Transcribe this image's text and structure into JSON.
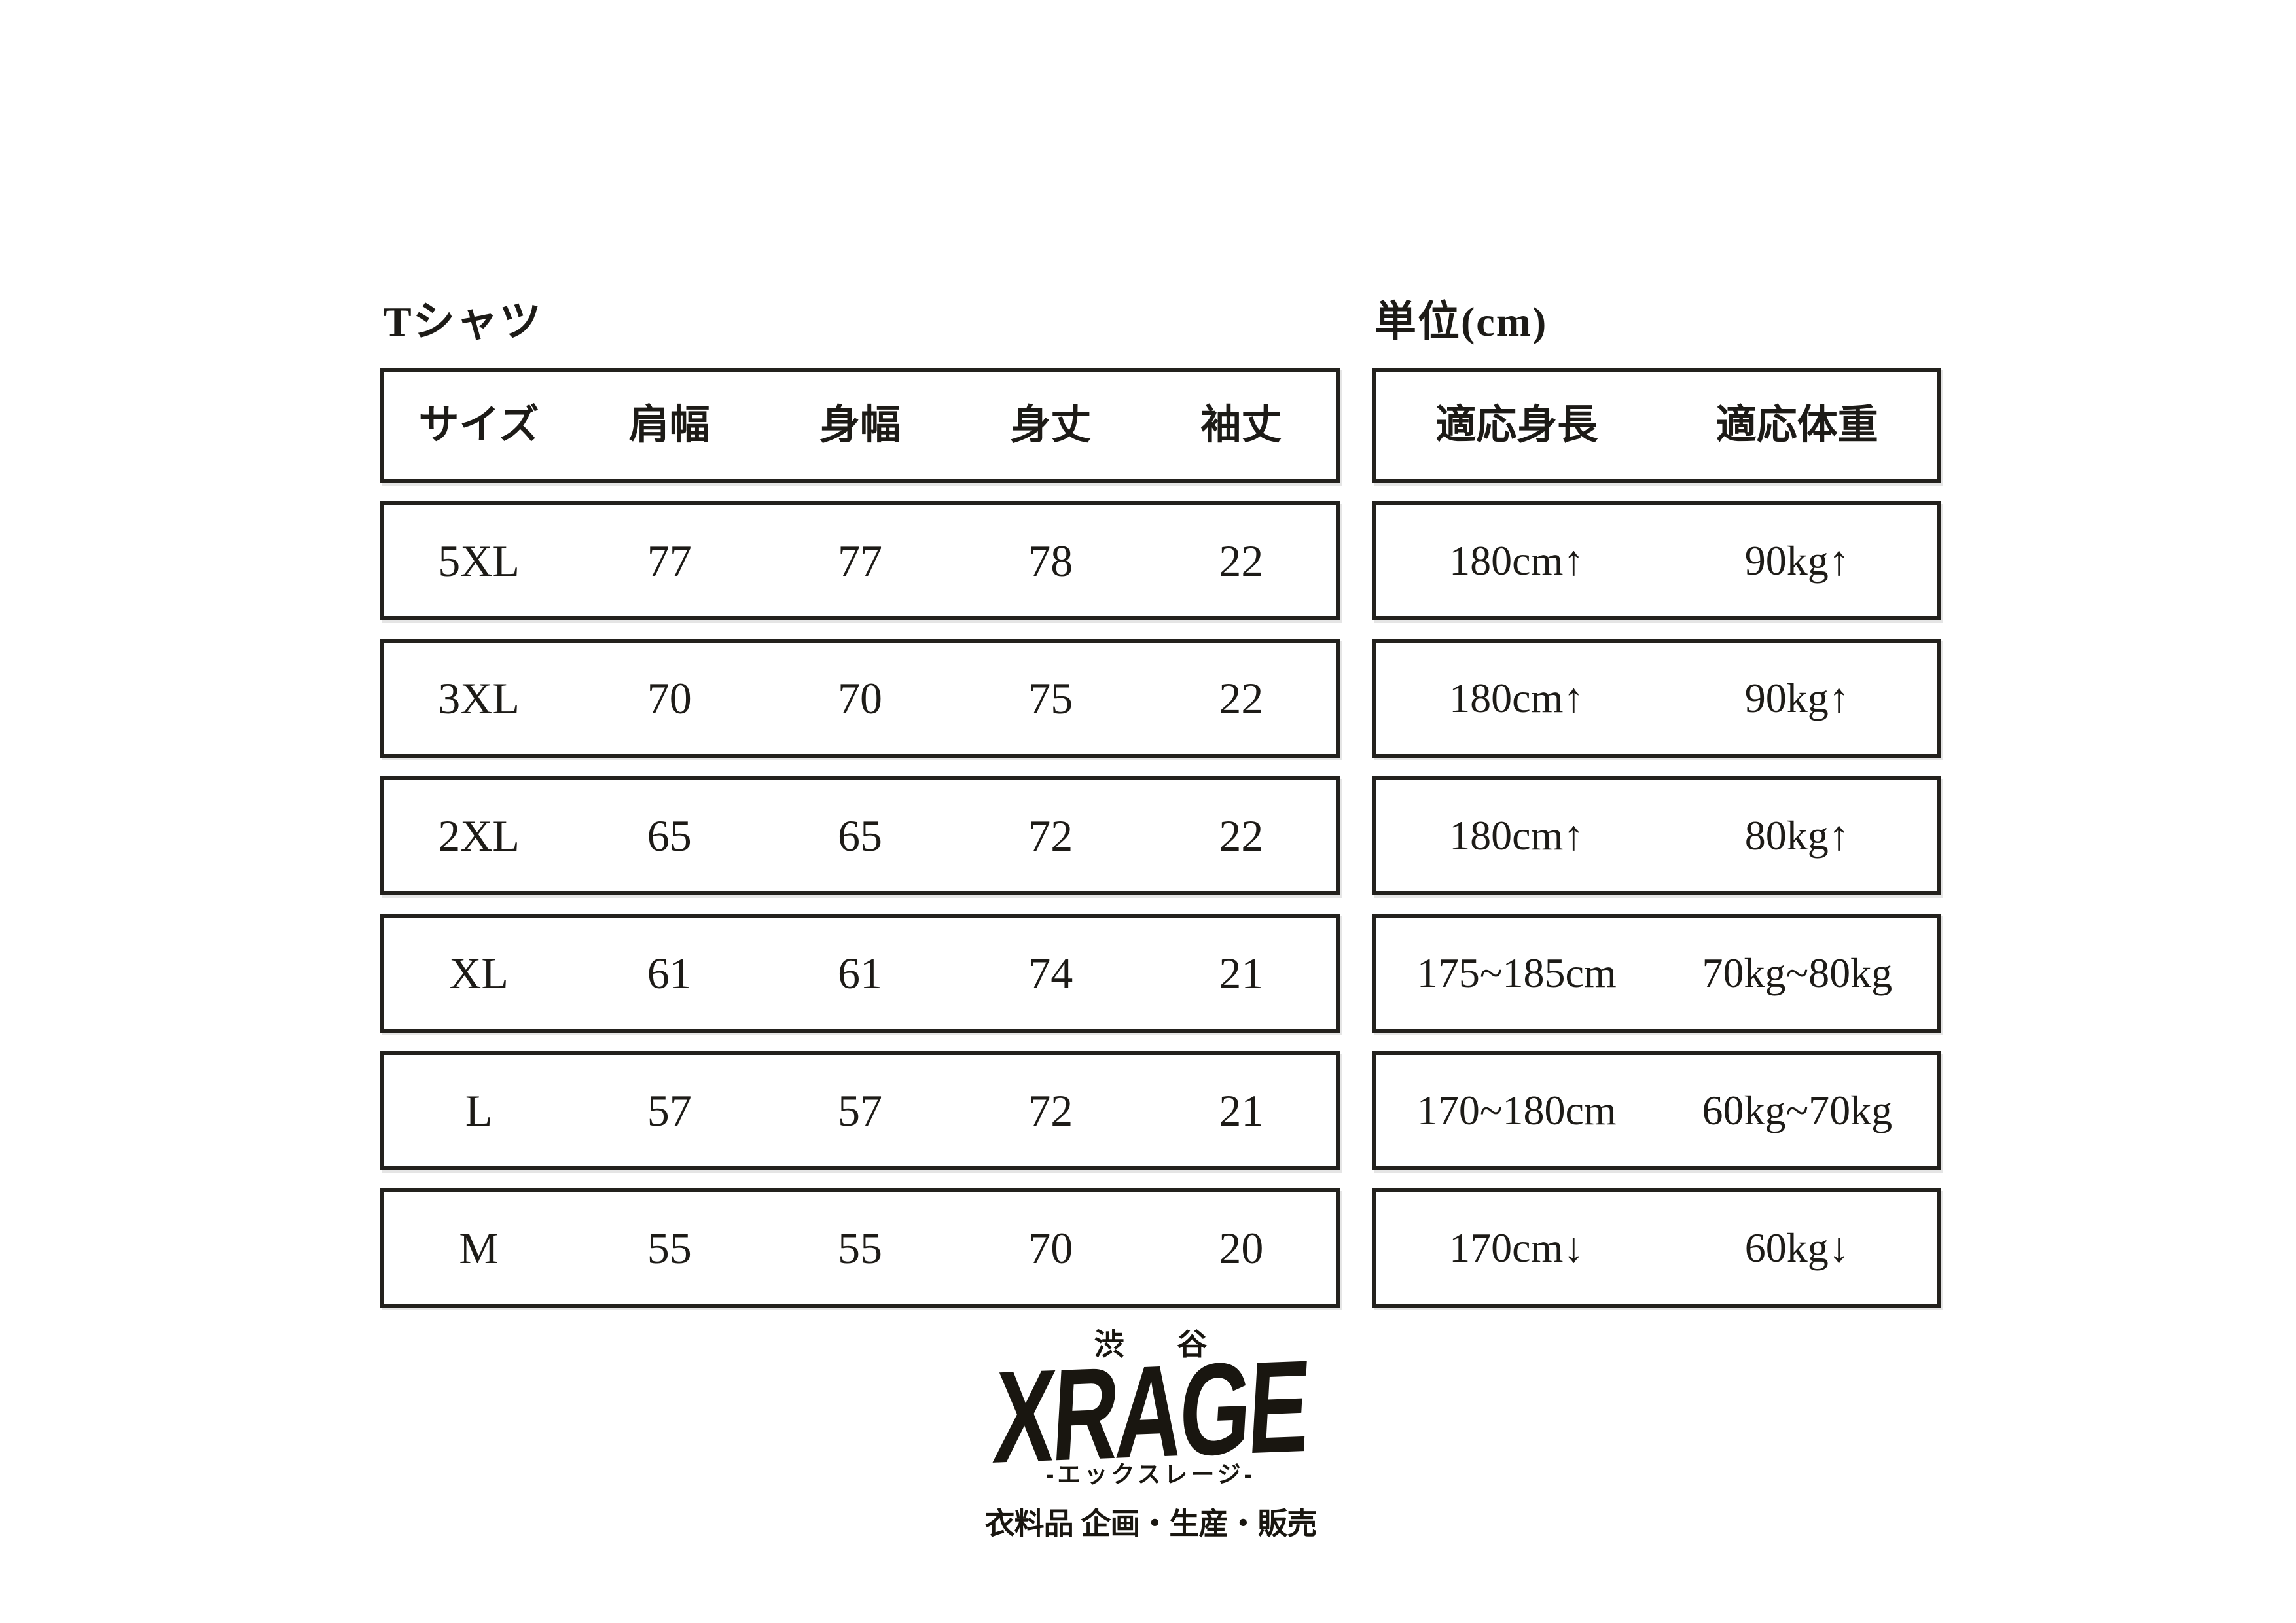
{
  "page": {
    "title": "Tシャツ",
    "unit_label": "単位(cm)"
  },
  "size_table": {
    "headers": [
      "サイズ",
      "肩幅",
      "身幅",
      "身丈",
      "袖丈"
    ],
    "rows": [
      [
        "5XL",
        "77",
        "77",
        "78",
        "22"
      ],
      [
        "3XL",
        "70",
        "70",
        "75",
        "22"
      ],
      [
        "2XL",
        "65",
        "65",
        "72",
        "22"
      ],
      [
        "XL",
        "61",
        "61",
        "74",
        "21"
      ],
      [
        "L",
        "57",
        "57",
        "72",
        "21"
      ],
      [
        "M",
        "55",
        "55",
        "70",
        "20"
      ]
    ]
  },
  "fit_table": {
    "headers": [
      "適応身長",
      "適応体重"
    ],
    "rows": [
      [
        "180cm↑",
        "90kg↑"
      ],
      [
        "180cm↑",
        "90kg↑"
      ],
      [
        "180cm↑",
        "80kg↑"
      ],
      [
        "175~185cm",
        "70kg~80kg"
      ],
      [
        "170~180cm",
        "60kg~70kg"
      ],
      [
        "170cm↓",
        "60kg↓"
      ]
    ]
  },
  "logo": {
    "location": "渋 谷",
    "brand": "XRAGE",
    "reading": "-エックスレージ-",
    "tagline": "衣料品 企画・生産・販売"
  },
  "colors": {
    "text": "#1d1b17",
    "border": "#23211d",
    "background": "#ffffff"
  }
}
